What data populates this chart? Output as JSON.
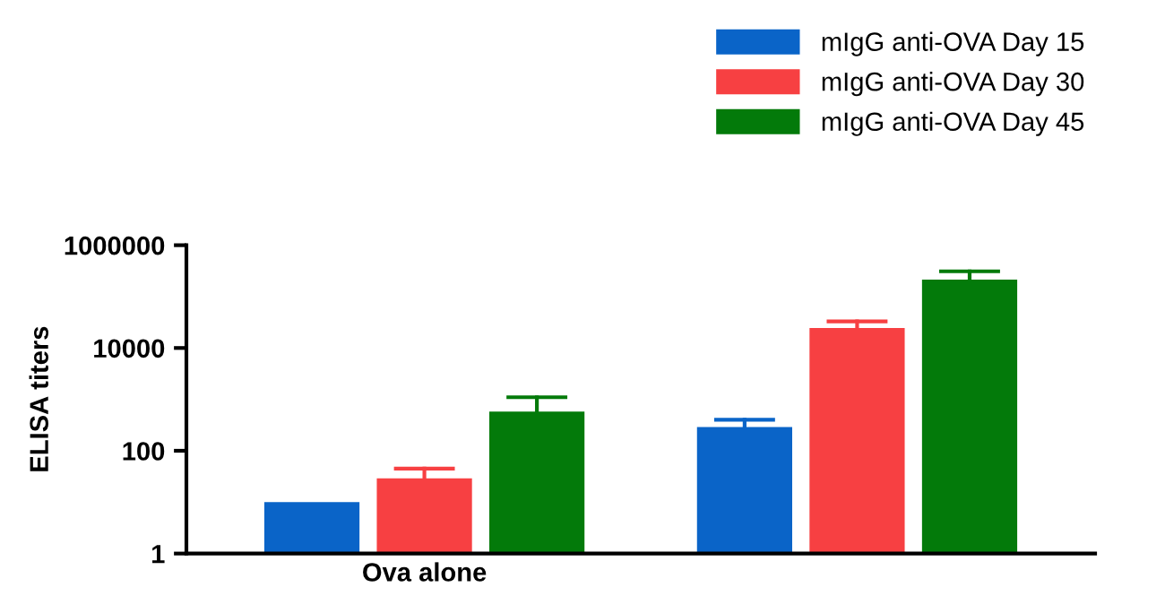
{
  "chart_data": {
    "type": "bar",
    "ylabel": "ELISA titers",
    "categories": [
      "Ova alone",
      null
    ],
    "series": [
      {
        "name": "mIgG anti-OVA Day 15",
        "color": "#0a64c8",
        "values": [
          10,
          290
        ],
        "errors": [
          null,
          110
        ]
      },
      {
        "name": "mIgG anti-OVA Day 30",
        "color": "#f74042",
        "values": [
          29,
          24500
        ],
        "errors": [
          16,
          8500
        ]
      },
      {
        "name": "mIgG anti-OVA Day 45",
        "color": "#037a0a",
        "values": [
          580,
          215000
        ],
        "errors": [
          520,
          95000
        ]
      }
    ],
    "log": "y",
    "ylim": [
      1,
      1000000
    ],
    "yticks": [
      1,
      100,
      10000,
      1000000
    ],
    "grid": false,
    "legend": "top right"
  }
}
